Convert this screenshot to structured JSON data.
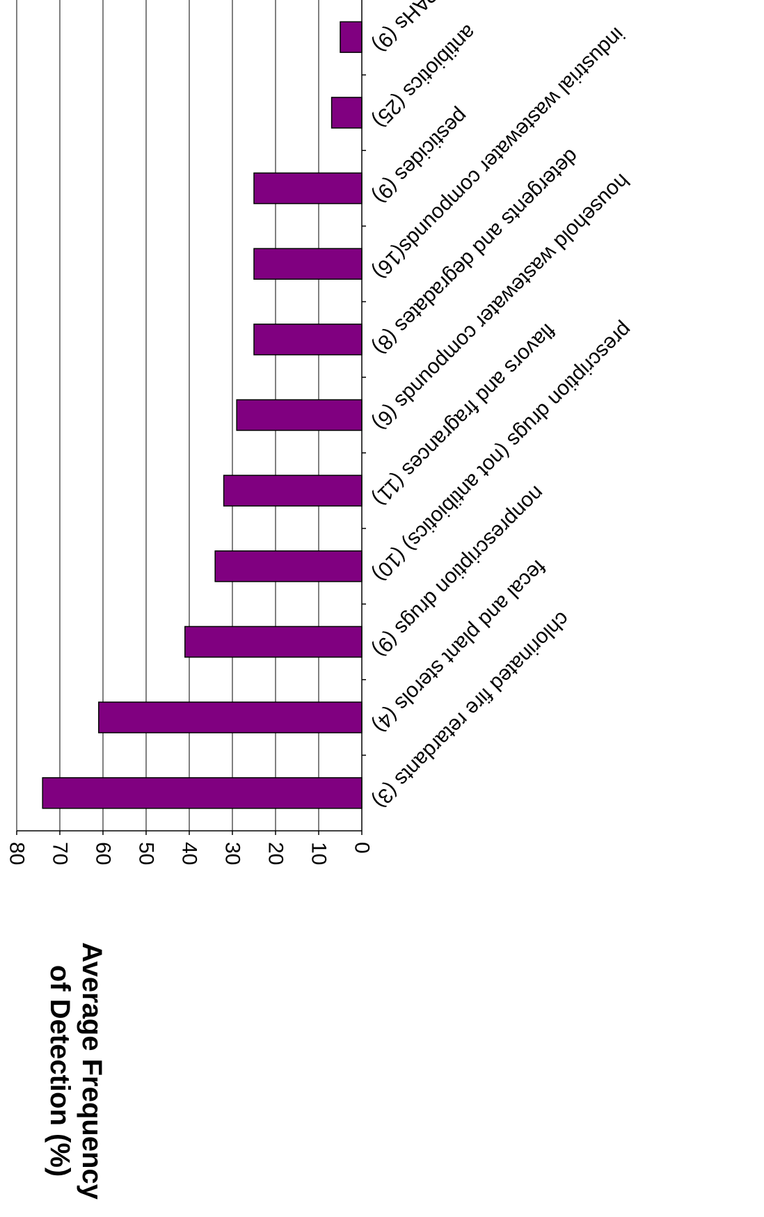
{
  "chart_data": {
    "type": "bar",
    "orientation": "horizontal",
    "rotated_view": "180deg",
    "title": "",
    "xlabel": "",
    "ylabel": "Average Frequency of Detection (%)",
    "ylabel_lines": [
      "Average Frequency",
      "of Detection (%)"
    ],
    "ylim": [
      0,
      80
    ],
    "ticks": [
      "0",
      "10",
      "20",
      "30",
      "40",
      "50",
      "60",
      "70",
      "80"
    ],
    "grid": true,
    "legend": "none",
    "bar_color": "#800080",
    "categories": [
      "chlorinated fire retardants (3)",
      "fecal and plant sterols (4)",
      "nonprescription drugs (9)",
      "prescription drugs (not antibiotics) (10)",
      "flavors and fragrances (11)",
      "household wastewater compounds (6)",
      "detergents and degradates (8)",
      "industrial wastewater compounds(16)",
      "pesticides (9)",
      "antibiotics (25)",
      "PAHs (9)"
    ],
    "values": [
      74,
      61,
      41,
      34,
      32,
      29,
      25,
      25,
      25,
      7,
      5
    ]
  }
}
